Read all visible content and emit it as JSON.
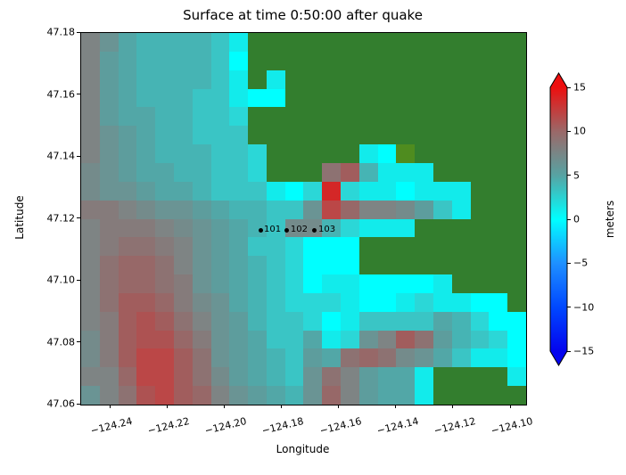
{
  "title": "Surface at time 0:50:00 after quake",
  "axes": {
    "xlabel": "Longitude",
    "ylabel": "Latitude",
    "xtick_labels": [
      "−124.24",
      "−124.22",
      "−124.20",
      "−124.18",
      "−124.16",
      "−124.14",
      "−124.12",
      "−124.10"
    ],
    "ytick_labels": [
      "47.18",
      "47.16",
      "47.14",
      "47.12",
      "47.10",
      "47.08",
      "47.06"
    ]
  },
  "colorbar": {
    "label": "meters",
    "tick_labels": [
      "15",
      "10",
      "5",
      "0",
      "−5",
      "−10",
      "−15"
    ],
    "tick_values": [
      15,
      10,
      5,
      0,
      -5,
      -10,
      -15
    ],
    "range_min": -15,
    "range_max": 15,
    "extend_over_color": "#ed0f0f",
    "extend_under_color": "#0404ee",
    "stops": [
      {
        "value": 15,
        "color": "#ed0f0f"
      },
      {
        "value": 10,
        "color": "#9b6868"
      },
      {
        "value": 5,
        "color": "#57a3a3"
      },
      {
        "value": 0,
        "color": "#00ffff"
      },
      {
        "value": -5,
        "color": "#1e90ff"
      },
      {
        "value": -10,
        "color": "#0048ff"
      },
      {
        "value": -15,
        "color": "#0404ee"
      }
    ]
  },
  "chart_data": {
    "type": "heatmap",
    "title": "Surface at time 0:50:00 after quake",
    "xlabel": "Longitude",
    "ylabel": "Latitude",
    "xlim": [
      -124.2503,
      -124.0947
    ],
    "ylim": [
      47.06,
      47.18
    ],
    "xticks": [
      -124.24,
      -124.22,
      -124.2,
      -124.18,
      -124.16,
      -124.14,
      -124.12,
      -124.1
    ],
    "yticks": [
      47.18,
      47.16,
      47.14,
      47.12,
      47.1,
      47.08,
      47.06
    ],
    "colorbar_label": "meters",
    "colorbar_range": [
      -15,
      15
    ],
    "grid_shape_rows_cols": [
      20,
      24
    ],
    "legend_note": "tokens map surface elevation in meters to colors; G = land (green), G2 = low land (olive)",
    "palette": {
      "G": "#337e2e",
      "G2": "#4f8c1f",
      "C0": "#00ffff",
      "C1": "#12ebeb",
      "C2": "#2bd7d7",
      "C3": "#3ac5c5",
      "C4": "#46b4b4",
      "C5": "#52a7a7",
      "T1": "#5d9d9d",
      "T2": "#6a9494",
      "Y": "#748b8b",
      "Y2": "#7e8484",
      "R0": "#857b7b",
      "R1": "#8d7272",
      "R2": "#976868",
      "R3": "#a15d5d",
      "R4": "#ad5252",
      "R5": "#bb4747",
      "R6": "#d42727"
    },
    "palette_meters": {
      "G": "land",
      "G2": "land",
      "C0": 0,
      "C1": 1,
      "C2": 2,
      "C3": 3.5,
      "C4": 4.5,
      "C5": 5,
      "T1": 5.5,
      "T2": 6,
      "Y": 6.5,
      "Y2": 7,
      "R0": 7.5,
      "R1": 8,
      "R2": 9,
      "R3": 10,
      "R4": 11,
      "R5": 12,
      "R6": 13.5
    },
    "rows_top_to_bottom": [
      "Y2 T2 C5 C4 C4 C4 C4 C3 C1 G G G G G G G G G G G G G G G",
      "Y2 T1 C5 C4 C4 C4 C4 C3 C0 G G G G G G G G G G G G G G G",
      "Y2 T1 C5 C4 C4 C4 C4 C3 C1 G C1 G G G G G G G G G G G G G",
      "Y2 T1 C5 C4 C4 C4 C3 C3 C1 C0 C0 G G G G G G G G G G G G G",
      "Y2 T1 C5 C5 C4 C4 C3 C3 C2 G G G G G G G G G G G G G G G",
      "Y2 T2 T1 C5 C4 C4 C3 C3 C3 G G G G G G G G G G G G G G G",
      "Y2 T2 T1 C5 C4 C4 C4 C3 C3 C2 G G G G G C1 C0 G2 G G G G G G",
      "Y T2 T1 C5 C5 C4 C4 C3 C3 C2 G G G R1 R3 C4 C1 C1 C1 G G G G G",
      "Y T2 T2 T1 C5 C5 C4 C3 C3 C3 C1 C0 C2 R6 C2 C1 C1 C0 C1 C1 C1 G G G",
      "R0 R0 Y2 Y T2 T2 T1 C5 C4 C4 C3 C3 T2 R5 R2 Y2 Y2 Y T1 C3 C1 G G G",
      "Y2 R0 R0 R0 Y2 Y T2 T1 C5 C4 C3 Y Y C4 C2 C1 C1 C1 G G G G G G",
      "Y2 R0 R1 R1 R0 Y2 T2 T1 C5 C3 C3 C2 C0 C0 C0 G G G G G G G G G",
      "Y2 R1 R2 R2 R1 Y2 T2 T1 C5 C4 C3 C2 C0 C0 C0 G G G G G G G G G",
      "Y2 R1 R2 R2 R1 R0 T2 T1 C5 C4 C3 C2 C0 C1 C1 C0 C0 C0 C0 C1 G G G G",
      "Y2 R1 R3 R3 R2 R0 Y T2 C5 C4 C3 C2 C2 C2 C1 C0 C0 C1 C2 C1 C1 C0 C0 G",
      "Y2 R0 R3 R4 R3 R1 Y2 T2 T1 C4 C3 C3 C2 C0 C1 C3 C3 C3 C3 C5 C4 C2 C0 C0",
      "Y R0 R3 R4 R4 R2 R0 T2 T1 C5 C3 C3 C5 C1 C2 T2 Y2 R3 R1 T1 C4 C3 C2 C0",
      "Y R0 R3 R5 R5 R3 R1 T2 T1 C5 C4 C3 T1 C5 R1 R2 R1 Y T2 C5 C3 C1 C1 C0",
      "Y2 Y2 R2 R5 R5 R3 R1 Y T1 C5 C4 C3 T2 R1 Y2 T1 C5 C5 C1 G G G G C1",
      "T2 Y2 R1 R4 R5 R3 R2 Y2 T2 T1 C5 C4 T2 R2 Y2 T1 C5 C5 C1 G G G G G"
    ],
    "gauges": [
      {
        "id": "101",
        "lon": -124.1873,
        "lat": 47.1161
      },
      {
        "id": "102",
        "lon": -124.178,
        "lat": 47.1161
      },
      {
        "id": "103",
        "lon": -124.1683,
        "lat": 47.1161
      }
    ]
  }
}
